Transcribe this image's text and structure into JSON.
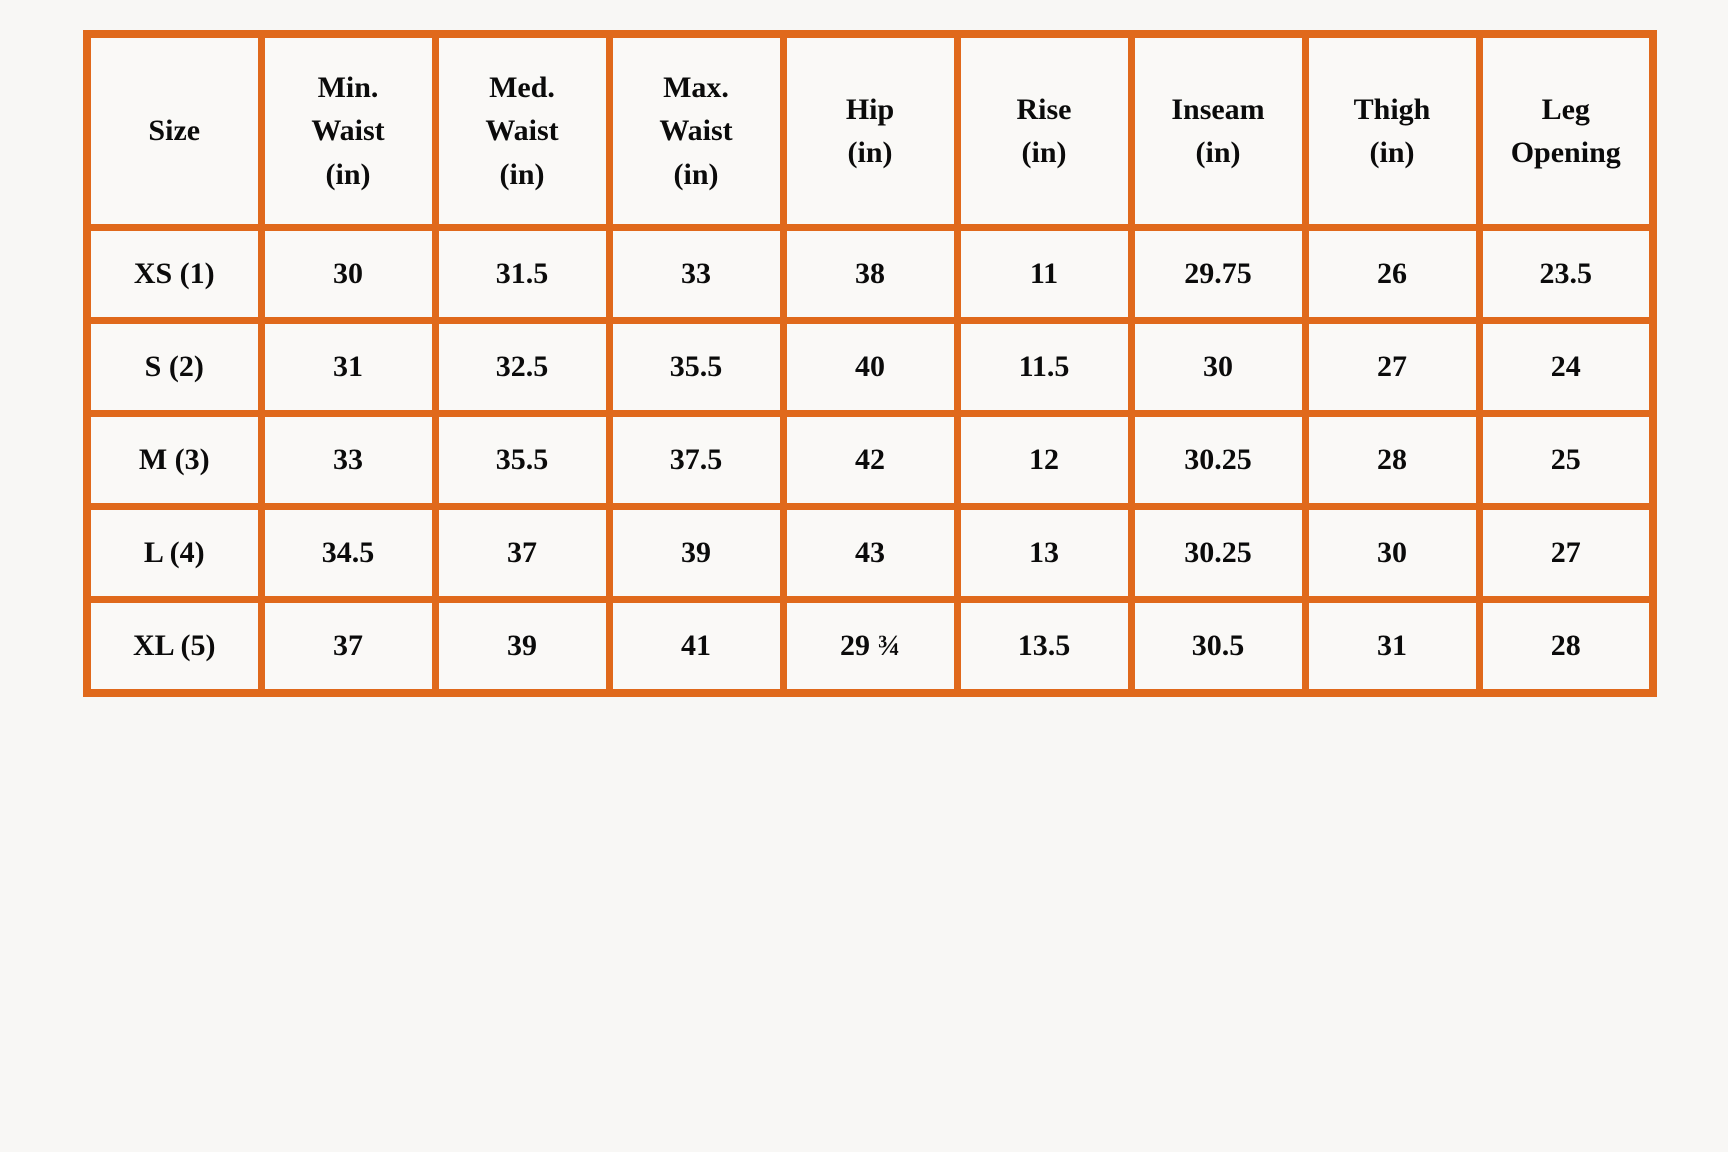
{
  "page": {
    "background_color": "#f8f7f5"
  },
  "table": {
    "name": "pants-size-chart",
    "border_color": "#e0691c",
    "cell_background": "#faf9f7",
    "text_color": "#0b0b0b",
    "columns": [
      "Size",
      "Min.\nWaist\n(in)",
      "Med.\nWaist\n(in)",
      "Max.\nWaist\n(in)",
      "Hip\n(in)",
      "Rise\n(in)",
      "Inseam\n(in)",
      "Thigh\n(in)",
      "Leg\nOpening"
    ],
    "rows": [
      {
        "size": "XS (1)",
        "values": [
          "30",
          "31.5",
          "33",
          "38",
          "11",
          "29.75",
          "26",
          "23.5"
        ]
      },
      {
        "size": "S (2)",
        "values": [
          "31",
          "32.5",
          "35.5",
          "40",
          "11.5",
          "30",
          "27",
          "24"
        ]
      },
      {
        "size": "M (3)",
        "values": [
          "33",
          "35.5",
          "37.5",
          "42",
          "12",
          "30.25",
          "28",
          "25"
        ]
      },
      {
        "size": "L (4)",
        "values": [
          "34.5",
          "37",
          "39",
          "43",
          "13",
          "30.25",
          "30",
          "27"
        ]
      },
      {
        "size": "XL (5)",
        "values": [
          "37",
          "39",
          "41",
          "29 ¾",
          "13.5",
          "30.5",
          "31",
          "28"
        ]
      }
    ]
  },
  "chart_data": {
    "type": "table",
    "title": "",
    "columns": [
      "Size",
      "Min. Waist (in)",
      "Med. Waist (in)",
      "Max. Waist (in)",
      "Hip (in)",
      "Rise (in)",
      "Inseam (in)",
      "Thigh (in)",
      "Leg Opening"
    ],
    "rows": [
      [
        "XS (1)",
        30,
        31.5,
        33,
        38,
        11,
        29.75,
        26,
        23.5
      ],
      [
        "S (2)",
        31,
        32.5,
        35.5,
        40,
        11.5,
        30,
        27,
        24
      ],
      [
        "M (3)",
        33,
        35.5,
        37.5,
        42,
        12,
        30.25,
        28,
        25
      ],
      [
        "L (4)",
        34.5,
        37,
        39,
        43,
        13,
        30.25,
        30,
        27
      ],
      [
        "XL (5)",
        37,
        39,
        41,
        "29 ¾",
        13.5,
        30.5,
        31,
        28
      ]
    ]
  }
}
